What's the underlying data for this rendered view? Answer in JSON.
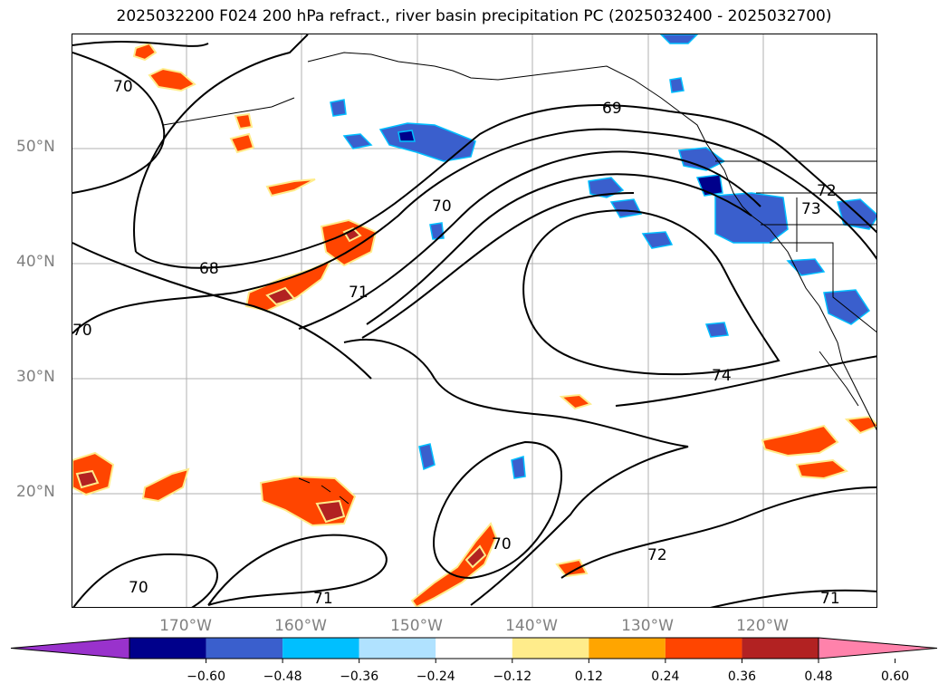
{
  "title": "2025032200 F024 200 hPa refract., river basin precipitation PC (2025032400 - 2025032700)",
  "map": {
    "lat_labels": [
      "50°N",
      "40°N",
      "30°N",
      "20°N"
    ],
    "lon_labels": [
      "170°W",
      "160°W",
      "150°W",
      "140°W",
      "130°W",
      "120°W"
    ],
    "contour_labels": [
      "70",
      "68",
      "70",
      "69",
      "70",
      "71",
      "72",
      "73",
      "74",
      "70",
      "72",
      "71",
      "70",
      "71"
    ],
    "contour_line_color": "#000000",
    "grid_color": "#b0b0b0",
    "coast_color": "#000000"
  },
  "colorbar": {
    "ticks": [
      "−0.60",
      "−0.48",
      "−0.36",
      "−0.24",
      "−0.12",
      "0.12",
      "0.24",
      "0.36",
      "0.48",
      "0.60"
    ],
    "colors": [
      "#9932cc",
      "#00008b",
      "#3a5fcd",
      "#00bfff",
      "#b0e2ff",
      "#ffffff",
      "#ffec8b",
      "#ffa500",
      "#ff4500",
      "#b22222",
      "#ff82ab"
    ],
    "extend": "both"
  }
}
